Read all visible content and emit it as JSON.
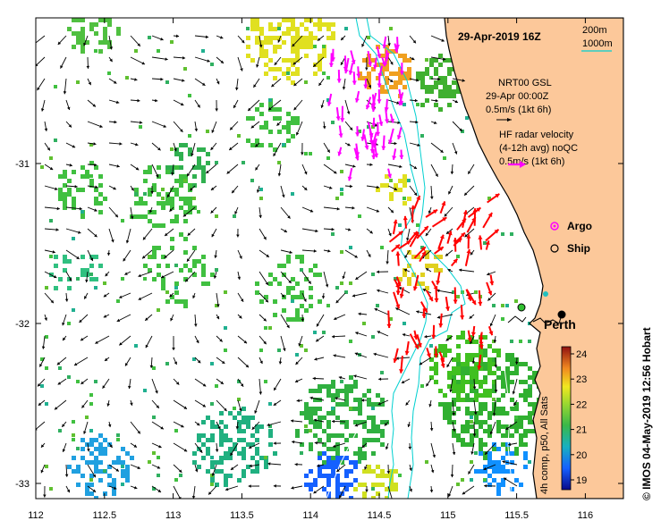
{
  "map": {
    "title": "29-Apr-2019 16Z",
    "credit": "© IMOS 04-May-2019 12:56 Hobart",
    "x_ticks": [
      "112",
      "112.5",
      "113",
      "113.5",
      "114",
      "114.5",
      "115",
      "115.5",
      "116"
    ],
    "y_ticks": [
      "-31",
      "-32",
      "-33"
    ],
    "depth_legend": {
      "line1": "200m",
      "line2": "1000m",
      "color1": "#000000",
      "color2": "#00d0d0"
    },
    "model_legend": {
      "line1": "NRT00 GSL",
      "line2": "29-Apr 00:00Z",
      "line3": "0.5m/s (1kt 6h)",
      "color": "#000000"
    },
    "radar_legend": {
      "line1": "HF radar velocity",
      "line2": "(4-12h avg) noQC",
      "line3": "0.5m/s (1kt 6h)",
      "color": "#ff00ff"
    },
    "markers": {
      "argo": "Argo",
      "ship": "Ship"
    },
    "city": "Perth",
    "colorbar": {
      "label": "4h comp, p50, All Sats",
      "ticks": [
        "24",
        "23",
        "22",
        "21",
        "20",
        "19"
      ]
    },
    "colors": {
      "land": "#fcc89a",
      "coast_outline": "#000000",
      "isobath": "#00d0d0",
      "model_arrow": "#000000",
      "radar_arrow_north": "#ff00ff",
      "radar_arrow_south": "#ff0000"
    }
  }
}
